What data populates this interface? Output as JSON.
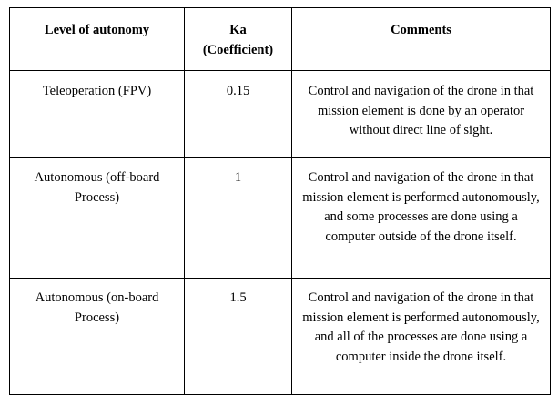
{
  "table": {
    "headers": {
      "level": "Level of autonomy",
      "ka_line1": "Ka",
      "ka_line2": "(Coefficient)",
      "comments": "Comments"
    },
    "rows": [
      {
        "level": "Teleoperation (FPV)",
        "ka": "0.15",
        "comment": "Control and navigation of the drone in that mission element is done by an operator without direct line of sight."
      },
      {
        "level": "Autonomous (off-board Process)",
        "ka": "1",
        "comment": "Control and navigation of the drone in that mission element is performed autonomously, and some processes are done using a computer outside of the drone itself."
      },
      {
        "level": "Autonomous (on-board Process)",
        "ka": "1.5",
        "comment": "Control and navigation of the drone in that mission element is performed autonomously, and all of the processes are done using a computer inside the drone itself."
      }
    ]
  }
}
